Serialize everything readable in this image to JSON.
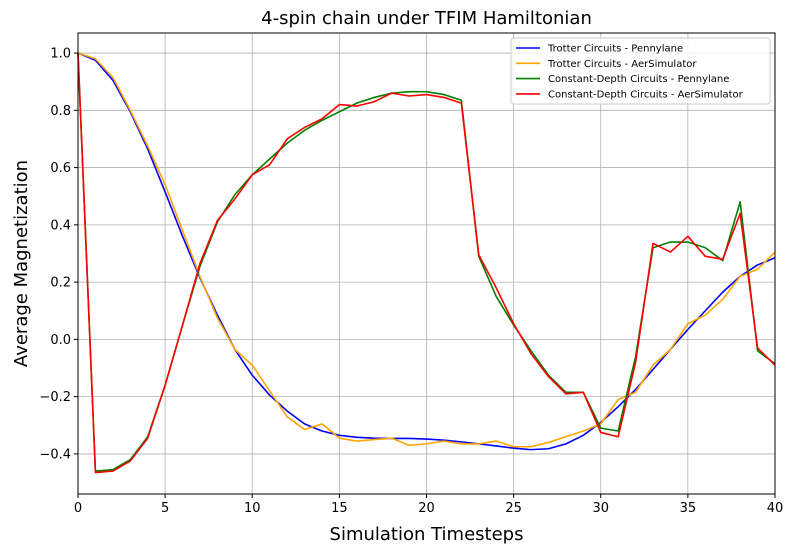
{
  "chart_data": {
    "type": "line",
    "title": "4-spin chain under TFIM Hamiltonian",
    "xlabel": "Simulation Timesteps",
    "ylabel": "Average Magnetization",
    "xlim": [
      0,
      40
    ],
    "ylim": [
      -0.54,
      1.07
    ],
    "xticks": [
      0,
      5,
      10,
      15,
      20,
      25,
      30,
      35,
      40
    ],
    "yticks": [
      -0.4,
      -0.2,
      0.0,
      0.2,
      0.4,
      0.6,
      0.8,
      1.0
    ],
    "ytick_labels": [
      "−0.4",
      "−0.2",
      "0.0",
      "0.2",
      "0.4",
      "0.6",
      "0.8",
      "1.0"
    ],
    "grid": true,
    "legend_position": "top-right",
    "x": [
      0,
      1,
      2,
      3,
      4,
      5,
      6,
      7,
      8,
      9,
      10,
      11,
      12,
      13,
      14,
      15,
      16,
      17,
      18,
      19,
      20,
      21,
      22,
      23,
      24,
      25,
      26,
      27,
      28,
      29,
      30,
      31,
      32,
      33,
      34,
      35,
      36,
      37,
      38,
      39,
      40
    ],
    "series": [
      {
        "name": "Trotter Circuits - Pennylane",
        "color": "#0000ff",
        "values": [
          1.0,
          0.975,
          0.905,
          0.795,
          0.665,
          0.515,
          0.36,
          0.215,
          0.085,
          -0.035,
          -0.125,
          -0.195,
          -0.25,
          -0.295,
          -0.32,
          -0.335,
          -0.342,
          -0.345,
          -0.346,
          -0.346,
          -0.348,
          -0.352,
          -0.358,
          -0.365,
          -0.372,
          -0.38,
          -0.385,
          -0.382,
          -0.365,
          -0.335,
          -0.29,
          -0.235,
          -0.175,
          -0.105,
          -0.035,
          0.035,
          0.1,
          0.165,
          0.22,
          0.26,
          0.285
        ]
      },
      {
        "name": "Trotter Circuits - AerSimulator",
        "color": "#ffa500",
        "values": [
          1.0,
          0.98,
          0.915,
          0.8,
          0.675,
          0.54,
          0.38,
          0.22,
          0.075,
          -0.035,
          -0.09,
          -0.18,
          -0.27,
          -0.315,
          -0.295,
          -0.345,
          -0.355,
          -0.35,
          -0.345,
          -0.37,
          -0.365,
          -0.355,
          -0.365,
          -0.365,
          -0.355,
          -0.375,
          -0.375,
          -0.36,
          -0.34,
          -0.32,
          -0.295,
          -0.21,
          -0.185,
          -0.09,
          -0.035,
          0.055,
          0.085,
          0.14,
          0.22,
          0.245,
          0.305
        ]
      },
      {
        "name": "Constant-Depth Circuits - Pennylane",
        "color": "#008000",
        "values": [
          1.0,
          -0.46,
          -0.455,
          -0.42,
          -0.34,
          -0.16,
          0.05,
          0.255,
          0.41,
          0.505,
          0.575,
          0.63,
          0.685,
          0.73,
          0.765,
          0.795,
          0.825,
          0.845,
          0.86,
          0.865,
          0.865,
          0.855,
          0.835,
          0.29,
          0.15,
          0.05,
          -0.04,
          -0.125,
          -0.185,
          -0.185,
          -0.31,
          -0.32,
          -0.06,
          0.32,
          0.34,
          0.34,
          0.32,
          0.275,
          0.48,
          -0.04,
          -0.085
        ]
      },
      {
        "name": "Constant-Depth Circuits - AerSimulator",
        "color": "#ff0000",
        "values": [
          1.0,
          -0.465,
          -0.46,
          -0.425,
          -0.345,
          -0.16,
          0.05,
          0.265,
          0.415,
          0.49,
          0.575,
          0.61,
          0.7,
          0.74,
          0.77,
          0.82,
          0.815,
          0.83,
          0.86,
          0.85,
          0.855,
          0.845,
          0.825,
          0.295,
          0.18,
          0.055,
          -0.05,
          -0.13,
          -0.19,
          -0.185,
          -0.325,
          -0.34,
          -0.08,
          0.335,
          0.305,
          0.36,
          0.29,
          0.28,
          0.44,
          -0.03,
          -0.09
        ]
      }
    ]
  }
}
